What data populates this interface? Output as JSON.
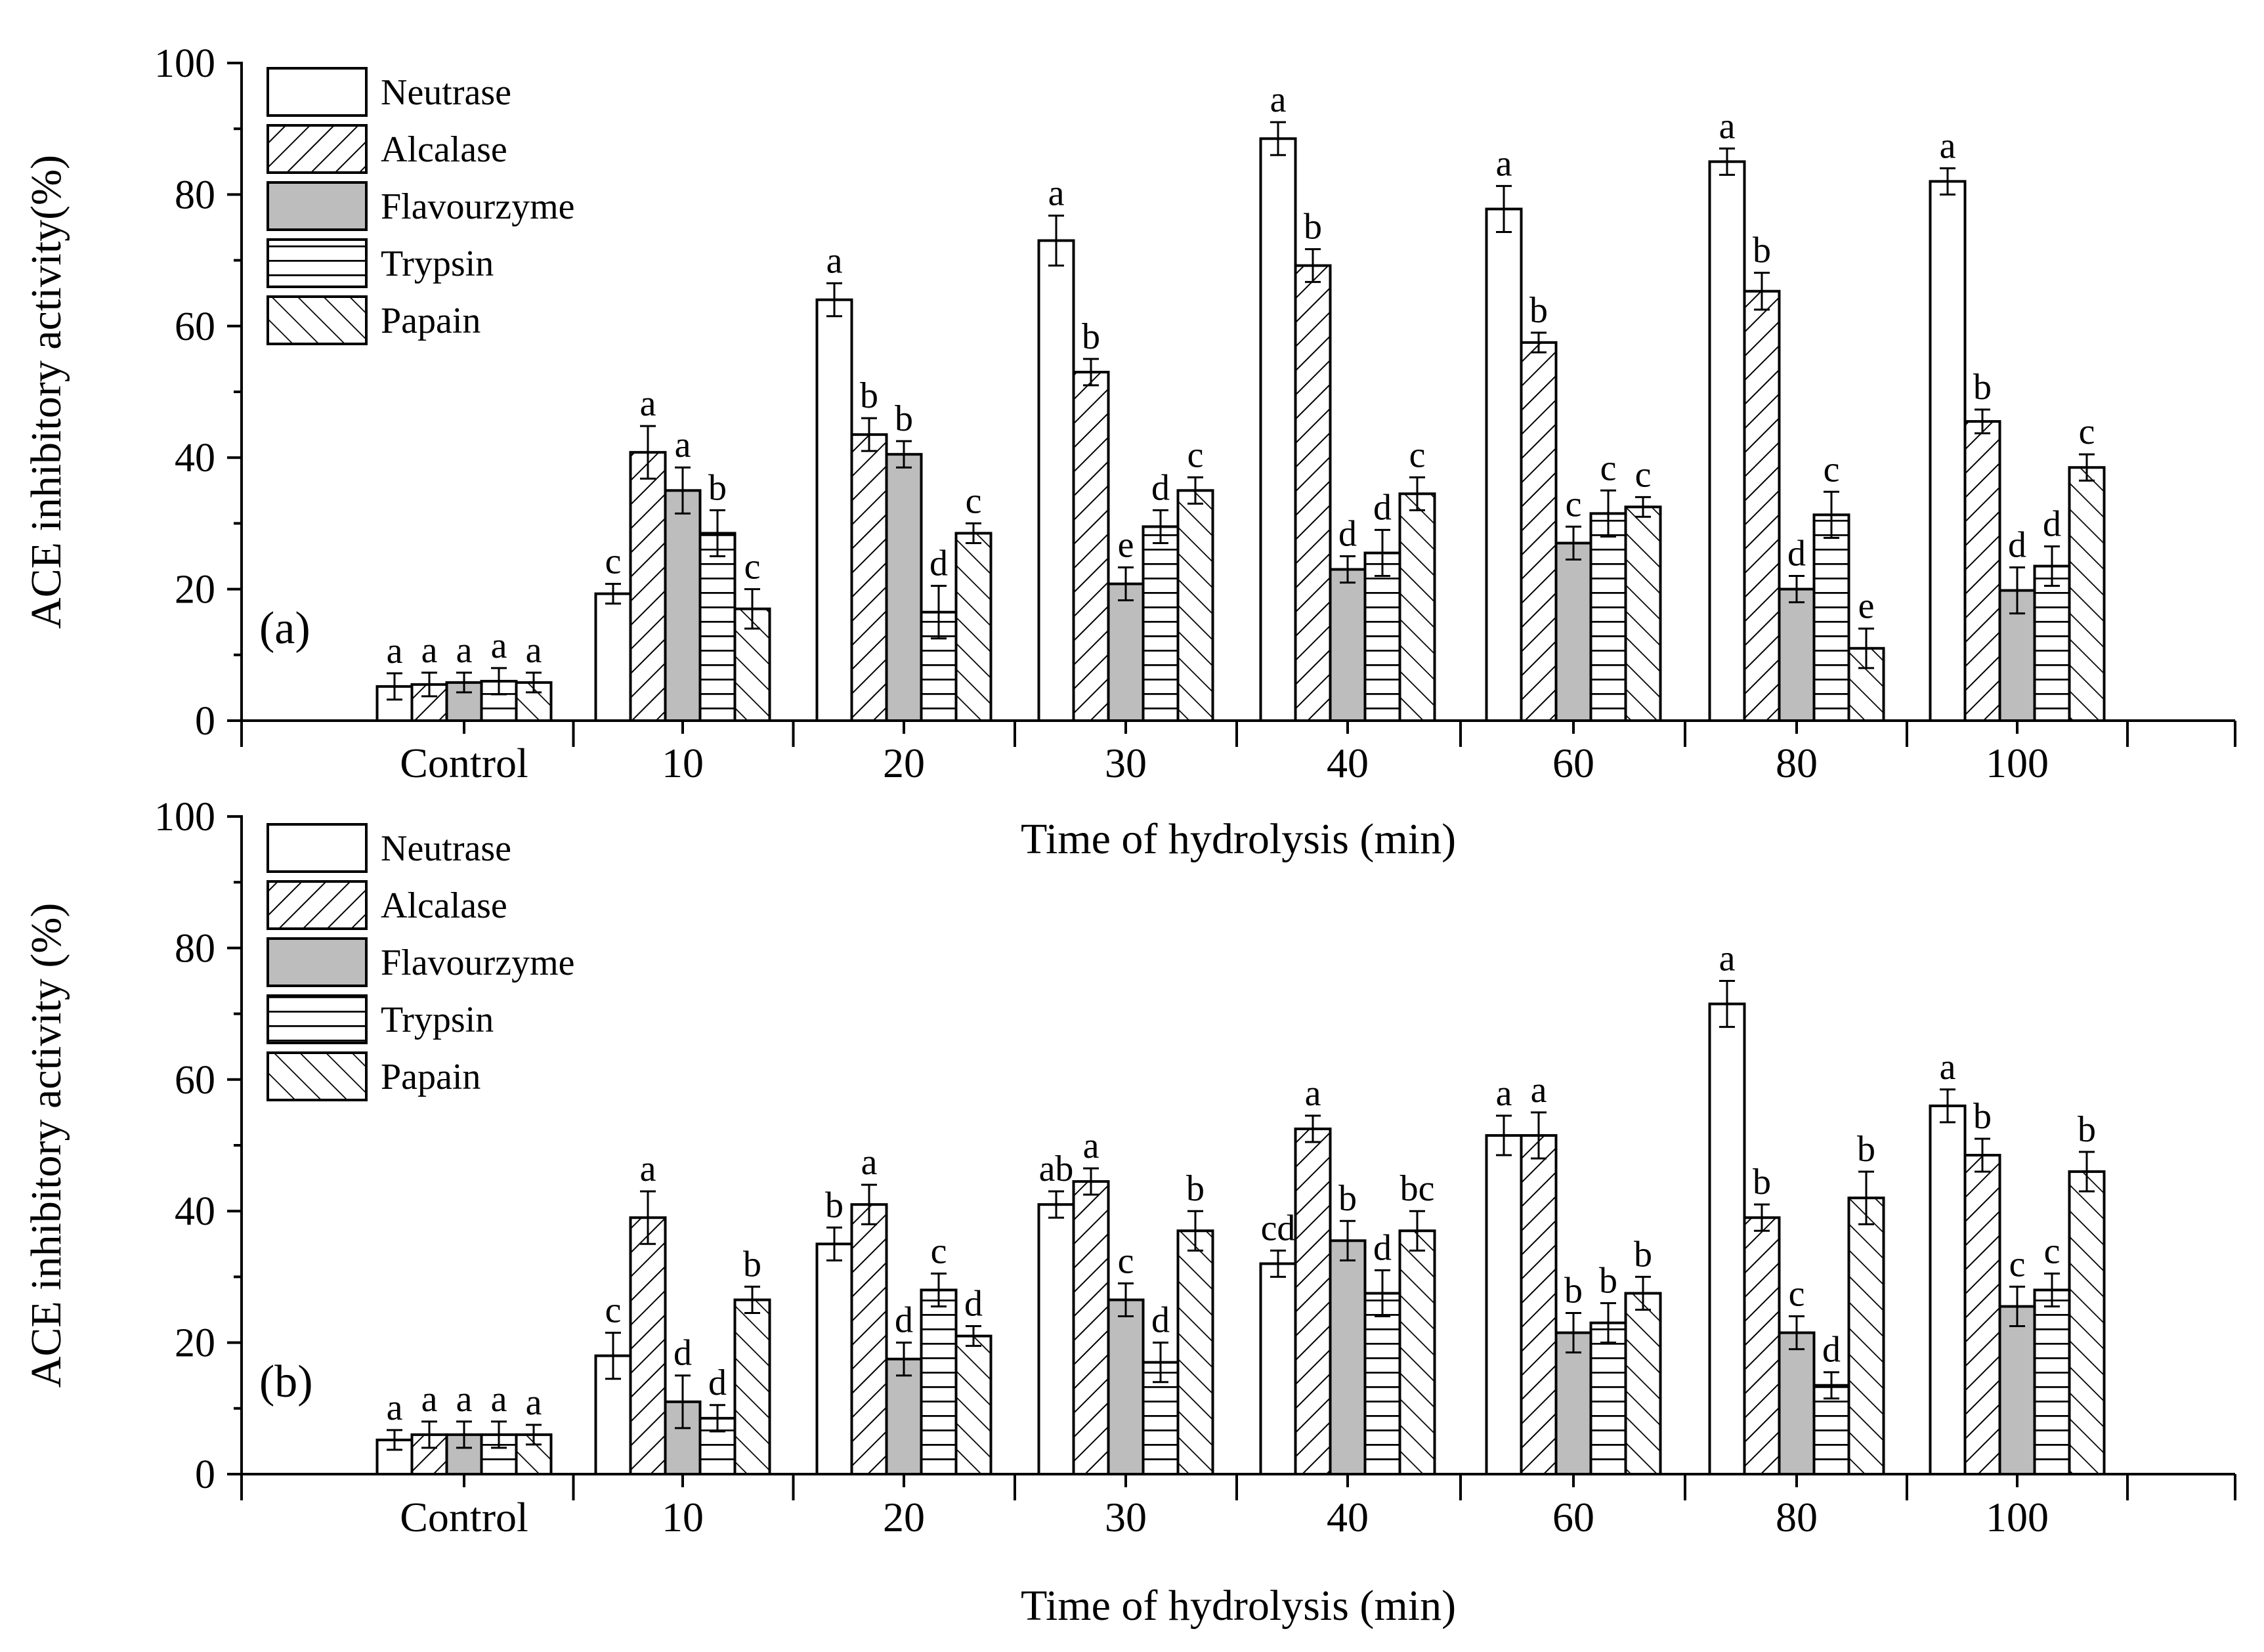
{
  "figure": {
    "series_names": [
      "Neutrase",
      "Alcalase",
      "Flavourzyme",
      "Trypsin",
      "Papain"
    ],
    "series_fills": [
      "#ffffff",
      "hatch-diag-up",
      "#bdbdbd",
      "hatch-horizontal",
      "hatch-diag-down"
    ]
  },
  "chart_data": [
    {
      "type": "bar",
      "panel_label": "(a)",
      "xlabel": "Time of hydrolysis (min)",
      "ylabel": "ACE inhibitory activity(%)",
      "ylim": [
        0,
        100
      ],
      "yticks": [
        0,
        20,
        40,
        60,
        80,
        100
      ],
      "categories": [
        "Control",
        "10",
        "20",
        "30",
        "40",
        "60",
        "80",
        "100"
      ],
      "legend_position": "top-left",
      "series": [
        {
          "name": "Neutrase",
          "values": [
            5.2,
            19.3,
            64.0,
            73.0,
            88.5,
            77.8,
            85.0,
            82.0
          ],
          "errors": [
            2.0,
            1.5,
            2.5,
            3.8,
            2.5,
            3.5,
            2.0,
            2.0
          ],
          "labels": [
            "a",
            "c",
            "a",
            "a",
            "a",
            "a",
            "a",
            "a"
          ]
        },
        {
          "name": "Alcalase",
          "values": [
            5.5,
            40.8,
            43.5,
            53.0,
            69.2,
            57.5,
            65.3,
            45.5
          ],
          "errors": [
            1.8,
            4.0,
            2.5,
            2.0,
            2.5,
            1.5,
            2.8,
            1.8
          ],
          "labels": [
            "a",
            "a",
            "b",
            "b",
            "b",
            "b",
            "b",
            "b"
          ]
        },
        {
          "name": "Flavourzyme",
          "values": [
            5.8,
            35.0,
            40.5,
            20.8,
            23.0,
            27.0,
            20.0,
            19.8
          ],
          "errors": [
            1.5,
            3.5,
            2.0,
            2.5,
            2.0,
            2.5,
            2.0,
            3.5
          ],
          "labels": [
            "a",
            "a",
            "b",
            "e",
            "d",
            "c",
            "d",
            "d"
          ]
        },
        {
          "name": "Trypsin",
          "values": [
            6.0,
            28.5,
            16.5,
            29.5,
            25.5,
            31.5,
            31.3,
            23.5
          ],
          "errors": [
            2.0,
            3.5,
            4.0,
            2.5,
            3.5,
            3.5,
            3.5,
            3.0
          ],
          "labels": [
            "a",
            "b",
            "d",
            "d",
            "d",
            "c",
            "c",
            "d"
          ]
        },
        {
          "name": "Papain",
          "values": [
            5.8,
            17.0,
            28.5,
            35.0,
            34.5,
            32.5,
            11.0,
            38.5
          ],
          "errors": [
            1.5,
            3.0,
            1.5,
            2.0,
            2.5,
            1.5,
            3.0,
            2.0
          ],
          "labels": [
            "a",
            "c",
            "c",
            "c",
            "c",
            "c",
            "e",
            "c"
          ]
        }
      ]
    },
    {
      "type": "bar",
      "panel_label": "(b)",
      "xlabel": "Time of hydrolysis (min)",
      "ylabel": "ACE inhibitory activity (%)",
      "ylim": [
        0,
        100
      ],
      "yticks": [
        0,
        20,
        40,
        60,
        80,
        100
      ],
      "categories": [
        "Control",
        "10",
        "20",
        "30",
        "40",
        "60",
        "80",
        "100"
      ],
      "legend_position": "top-left",
      "series": [
        {
          "name": "Neutrase",
          "values": [
            5.2,
            18.0,
            35.0,
            41.0,
            32.0,
            51.5,
            71.5,
            56.0
          ],
          "errors": [
            1.5,
            3.5,
            2.5,
            2.0,
            2.0,
            3.0,
            3.5,
            2.5
          ],
          "labels": [
            "a",
            "c",
            "b",
            "ab",
            "cd",
            "a",
            "a",
            "a"
          ]
        },
        {
          "name": "Alcalase",
          "values": [
            6.0,
            39.0,
            41.0,
            44.5,
            52.5,
            51.5,
            39.0,
            48.5
          ],
          "errors": [
            2.0,
            4.0,
            3.0,
            2.0,
            2.0,
            3.5,
            2.0,
            2.5
          ],
          "labels": [
            "a",
            "a",
            "a",
            "a",
            "a",
            "a",
            "b",
            "b"
          ]
        },
        {
          "name": "Flavourzyme",
          "values": [
            6.0,
            11.0,
            17.5,
            26.5,
            35.5,
            21.5,
            21.5,
            25.5
          ],
          "errors": [
            2.0,
            4.0,
            2.5,
            2.5,
            3.0,
            3.0,
            2.5,
            3.0
          ],
          "labels": [
            "a",
            "d",
            "d",
            "c",
            "b",
            "b",
            "c",
            "c"
          ]
        },
        {
          "name": "Trypsin",
          "values": [
            6.0,
            8.5,
            28.0,
            17.0,
            27.5,
            23.0,
            13.5,
            28.0
          ],
          "errors": [
            2.0,
            2.0,
            2.5,
            3.0,
            3.5,
            3.0,
            2.0,
            2.5
          ],
          "labels": [
            "a",
            "d",
            "c",
            "d",
            "d",
            "b",
            "d",
            "c"
          ]
        },
        {
          "name": "Papain",
          "values": [
            6.0,
            26.5,
            21.0,
            37.0,
            37.0,
            27.5,
            42.0,
            46.0
          ],
          "errors": [
            1.5,
            2.0,
            1.5,
            3.0,
            3.0,
            2.5,
            4.0,
            3.0
          ],
          "labels": [
            "a",
            "b",
            "d",
            "b",
            "bc",
            "b",
            "b",
            "b"
          ]
        }
      ]
    }
  ]
}
